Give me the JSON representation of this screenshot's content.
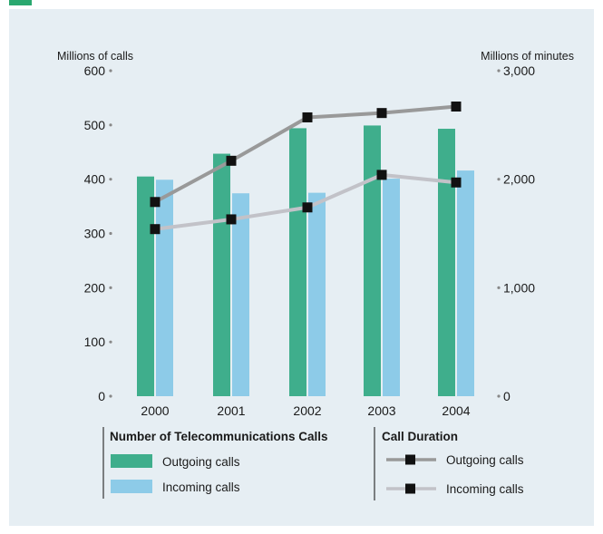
{
  "chart_data": {
    "type": "bar+line",
    "categories": [
      "2000",
      "2001",
      "2002",
      "2003",
      "2004"
    ],
    "left_axis": {
      "label": "Millions of calls",
      "range": [
        0,
        600
      ],
      "ticks": [
        "0",
        "100",
        "200",
        "300",
        "400",
        "500",
        "600"
      ]
    },
    "right_axis": {
      "label": "Millions of minutes",
      "range": [
        0,
        3000
      ],
      "ticks": [
        "0",
        "1,000",
        "2,000",
        "3,000"
      ]
    },
    "bar_series": [
      {
        "name": "Outgoing calls",
        "values": [
          405,
          447,
          494,
          499,
          493
        ],
        "color": "#3fae8c"
      },
      {
        "name": "Incoming calls",
        "values": [
          399,
          374,
          375,
          401,
          416
        ],
        "color": "#8dcbe8"
      }
    ],
    "line_series": [
      {
        "name": "Outgoing calls",
        "values": [
          1790,
          2170,
          2570,
          2610,
          2670
        ],
        "color": "#999999"
      },
      {
        "name": "Incoming calls",
        "values": [
          1540,
          1630,
          1740,
          2040,
          1970
        ],
        "color": "#c2c2c8"
      }
    ],
    "legend": {
      "bars_title": "Number of Telecommunications Calls",
      "lines_title": "Call Duration"
    },
    "grid": false
  }
}
